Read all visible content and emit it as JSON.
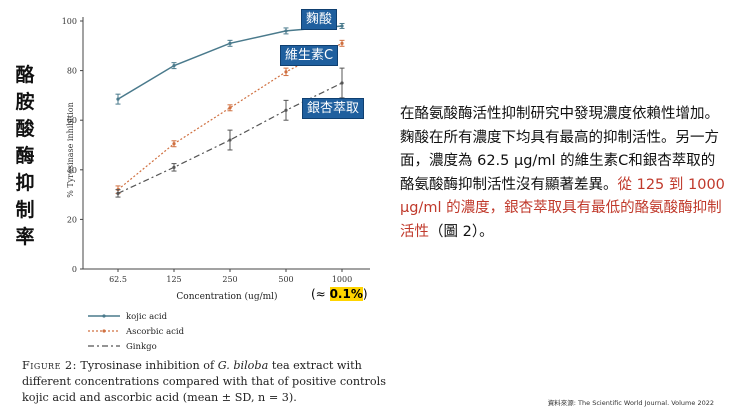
{
  "side_label": "酪胺酸酶抑制率",
  "tags": {
    "kojic": "麴酸",
    "vitc": "維生素C",
    "ginkgo": "銀杏萃取"
  },
  "approx": {
    "prefix": "(≈ ",
    "value": "0.1%",
    "suffix": ")"
  },
  "caption": {
    "fig": "Figure 2:",
    "part1": " Tyrosinase inhibition of ",
    "species": "G. biloba",
    "part2": " tea extract with different concentrations compared with that of positive controls kojic acid and ascorbic acid (mean ± SD, n = 3)."
  },
  "body": {
    "normal": "在酪氨酸酶活性抑制研究中發現濃度依賴性增加。麴酸在所有濃度下均具有最高的抑制活性。另一方面，濃度為 62.5 μg/ml 的維生素C和銀杏萃取的酪氨酸酶抑制活性沒有顯著差異。",
    "highlight": "從 125 到 1000 μg/ml 的濃度，銀杏萃取具有最低的酪氨酸酶抑制活性",
    "tail": "（圖 2）。"
  },
  "source": "資料來源: The Scientific World Journal. Volume 2022",
  "chart_data": {
    "type": "line",
    "categories": [
      "62.5",
      "125",
      "250",
      "500",
      "1000"
    ],
    "xlabel": "Concentration (ug/ml)",
    "ylabel": "% Tyrosinase inhibition",
    "ylim": [
      0,
      100
    ],
    "yticks": [
      "0",
      "20",
      "40",
      "60",
      "80",
      "100"
    ],
    "series": [
      {
        "name": "kojic acid",
        "values": [
          68.5,
          82,
          91,
          96,
          98
        ],
        "err": [
          2,
          1.2,
          1.2,
          1.2,
          1
        ],
        "color": "#4a7a8c",
        "style": "solid"
      },
      {
        "name": "Ascorbic acid",
        "values": [
          32,
          50.5,
          65,
          79.5,
          91
        ],
        "err": [
          1.5,
          1.2,
          1.2,
          1.5,
          1.2
        ],
        "color": "#d07040",
        "style": "dotted"
      },
      {
        "name": "Ginkgo",
        "values": [
          30.5,
          41,
          52,
          64,
          75
        ],
        "err": [
          1.5,
          1.5,
          4,
          4,
          6
        ],
        "color": "#555555",
        "style": "dashdot"
      }
    ]
  }
}
